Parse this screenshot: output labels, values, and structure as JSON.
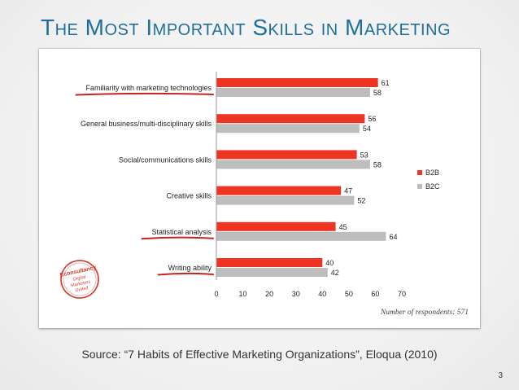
{
  "title": "The Most Important Skills in Marketing",
  "source": "Source: “7 Habits of Effective Marketing Organizations”, Eloqua (2010)",
  "page_number": "3",
  "stamp_text": "Econsultancy Digital Marketers United",
  "chart_data": {
    "type": "bar",
    "orientation": "horizontal",
    "categories": [
      "Familiarity with marketing technologies",
      "General business/multi-disciplinary skills",
      "Social/communications skills",
      "Creative skills",
      "Statistical analysis",
      "Writing ability"
    ],
    "series": [
      {
        "name": "B2B",
        "values": [
          61,
          56,
          53,
          47,
          45,
          40
        ],
        "color": "#ee3524"
      },
      {
        "name": "B2C",
        "values": [
          58,
          54,
          58,
          52,
          64,
          42
        ],
        "color": "#bdbdbd"
      }
    ],
    "xlim": [
      0,
      70
    ],
    "xticks": [
      0,
      10,
      20,
      30,
      40,
      50,
      60,
      70
    ],
    "annotation": "Number of respondents: 571",
    "legend_position": "right",
    "highlighted_categories": [
      "Familiarity with marketing technologies",
      "Statistical analysis",
      "Writing ability"
    ],
    "highlight_color": "#c8231b",
    "grid": false
  }
}
